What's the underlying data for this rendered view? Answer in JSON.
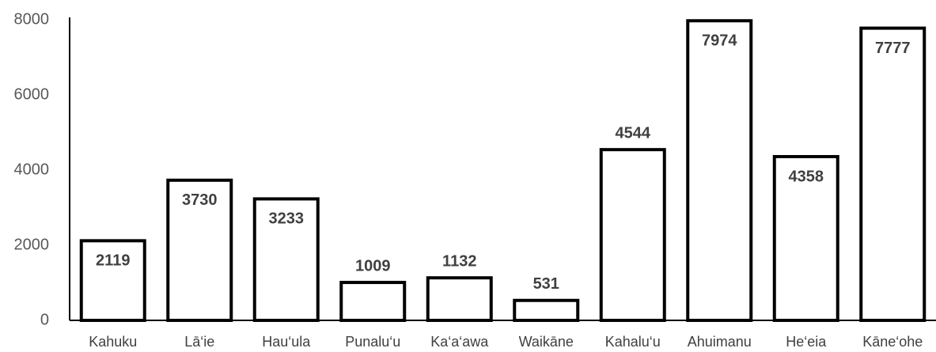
{
  "chart_data": {
    "type": "bar",
    "categories": [
      "Kahuku",
      "Lā‘ie",
      "Hau‘ula",
      "Punalu‘u",
      "Ka‘a‘awa",
      "Waikāne",
      "Kahalu‘u",
      "Ahuimanu",
      "He‘eia",
      "Kāne‘ohe"
    ],
    "values": [
      2119,
      3730,
      3233,
      1009,
      1132,
      531,
      4544,
      7974,
      4358,
      7777
    ],
    "color": "#ffffff",
    "edge_color": "#000000",
    "ylim": [
      0,
      8000
    ],
    "yticks": [
      0,
      2000,
      4000,
      6000,
      8000
    ],
    "grid": false
  }
}
